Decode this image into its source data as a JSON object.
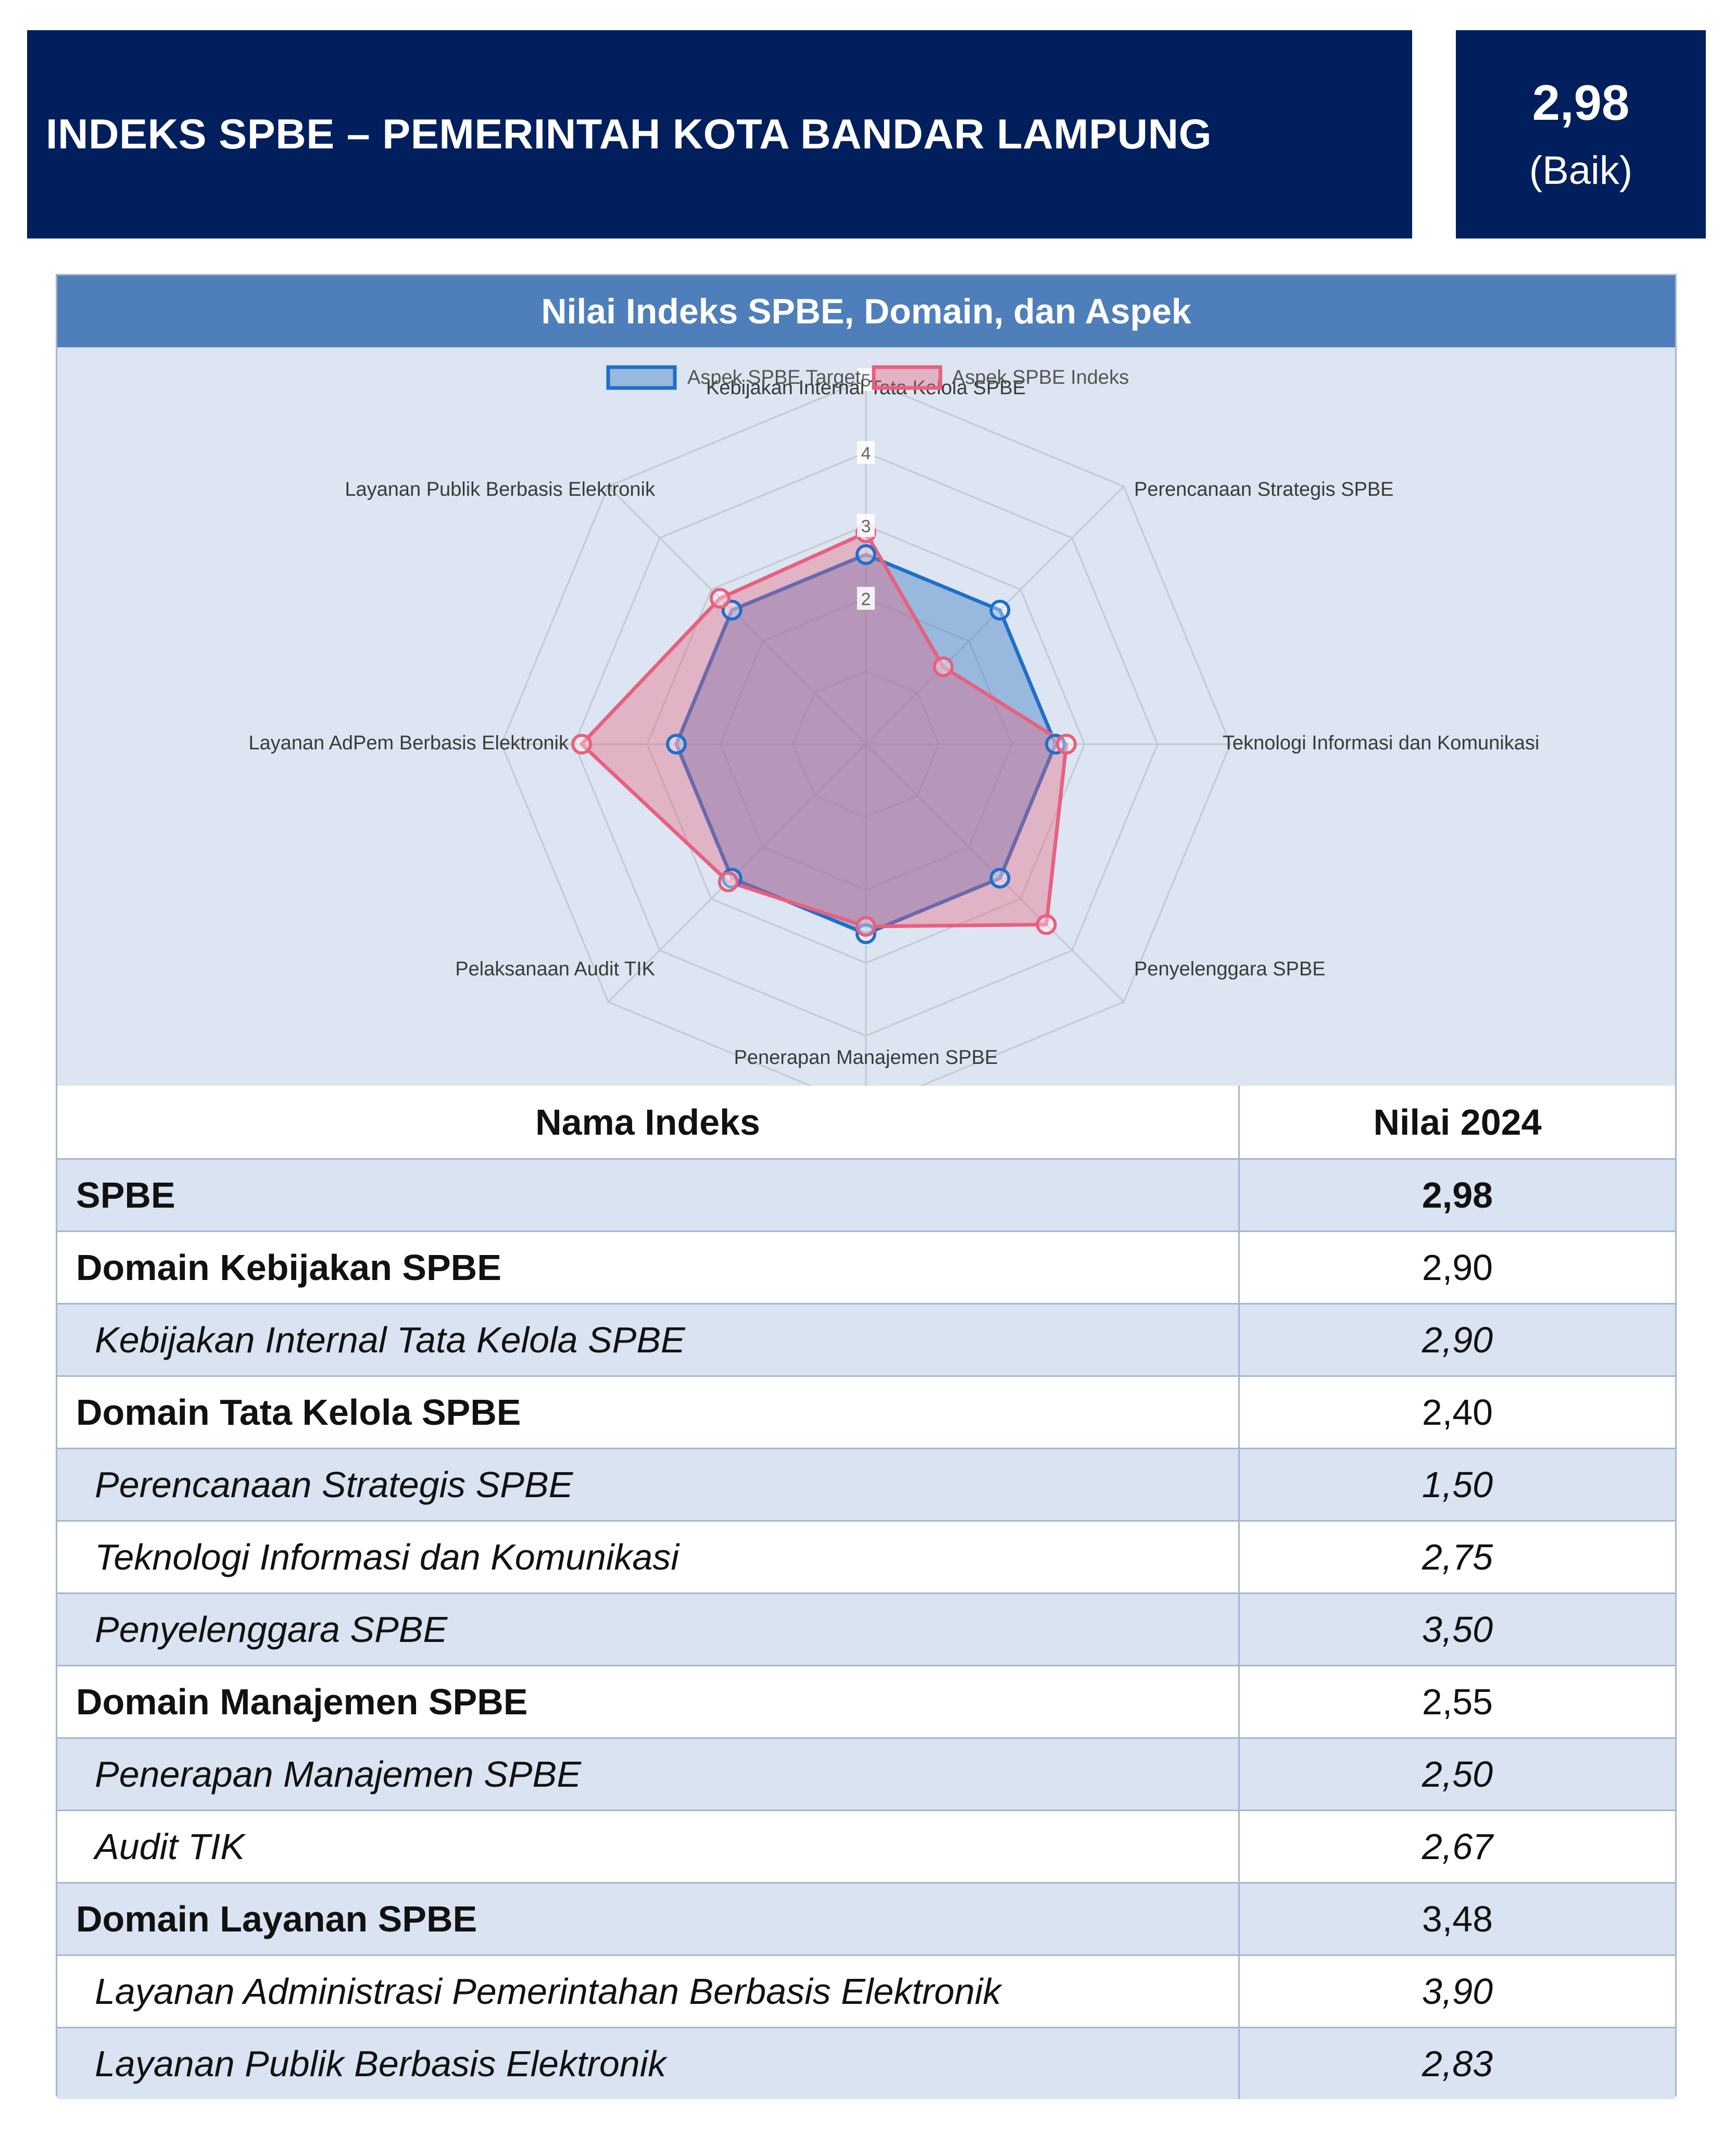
{
  "header": {
    "title": "INDEKS SPBE – PEMERINTAH KOTA BANDAR LAMPUNG",
    "score": "2,98",
    "score_label": "(Baik)"
  },
  "panel": {
    "title": "Nilai Indeks SPBE, Domain, dan Aspek"
  },
  "colors": {
    "header_bg": "#001f5c",
    "panel_title_bg": "#4e7fba",
    "chart_bg": "#dce5f1",
    "target_series": "#1f6fc9",
    "index_series": "#e8607f",
    "alt_row": "#d9e3f2"
  },
  "chart_data": {
    "type": "radar",
    "title": "Nilai Indeks SPBE, Domain, dan Aspek",
    "categories": [
      "Kebijakan Internal Tata Kelola SPBE",
      "Perencanaan Strategis SPBE",
      "Teknologi Informasi dan Komunikasi",
      "Penyelenggara SPBE",
      "Penerapan Manajemen SPBE",
      "Pelaksanaan Audit TIK",
      "Layanan AdPem Berbasis Elektronik",
      "Layanan Publik Berbasis Elektronik"
    ],
    "series": [
      {
        "name": "Aspek SPBE Target",
        "values": [
          2.6,
          2.6,
          2.6,
          2.6,
          2.6,
          2.6,
          2.6,
          2.6
        ]
      },
      {
        "name": "Aspek SPBE Indeks",
        "values": [
          2.9,
          1.5,
          2.75,
          3.5,
          2.5,
          2.67,
          3.9,
          2.83
        ]
      }
    ],
    "r_ticks": [
      "2",
      "3",
      "4",
      "5"
    ],
    "r_range": [
      0,
      5
    ],
    "legend_position": "top",
    "grid": true
  },
  "table": {
    "headers": {
      "name": "Nama Indeks",
      "value": "Nilai 2024"
    },
    "rows": [
      {
        "name": "SPBE",
        "value": "2,98",
        "kind": "bold"
      },
      {
        "name": "Domain Kebijakan SPBE",
        "value": "2,90",
        "kind": "domain"
      },
      {
        "name": "Kebijakan Internal Tata Kelola SPBE",
        "value": "2,90",
        "kind": "aspect"
      },
      {
        "name": "Domain Tata Kelola SPBE",
        "value": "2,40",
        "kind": "domain"
      },
      {
        "name": "Perencanaan Strategis SPBE",
        "value": "1,50",
        "kind": "aspect"
      },
      {
        "name": "Teknologi Informasi dan Komunikasi",
        "value": "2,75",
        "kind": "aspect"
      },
      {
        "name": "Penyelenggara SPBE",
        "value": "3,50",
        "kind": "aspect"
      },
      {
        "name": "Domain Manajemen SPBE",
        "value": "2,55",
        "kind": "domain"
      },
      {
        "name": "Penerapan Manajemen SPBE",
        "value": "2,50",
        "kind": "aspect"
      },
      {
        "name": "Audit TIK",
        "value": "2,67",
        "kind": "aspect"
      },
      {
        "name": "Domain Layanan SPBE",
        "value": "3,48",
        "kind": "domain"
      },
      {
        "name": "Layanan Administrasi Pemerintahan Berbasis Elektronik",
        "value": "3,90",
        "kind": "aspect"
      },
      {
        "name": "Layanan Publik Berbasis Elektronik",
        "value": "2,83",
        "kind": "aspect"
      }
    ]
  }
}
